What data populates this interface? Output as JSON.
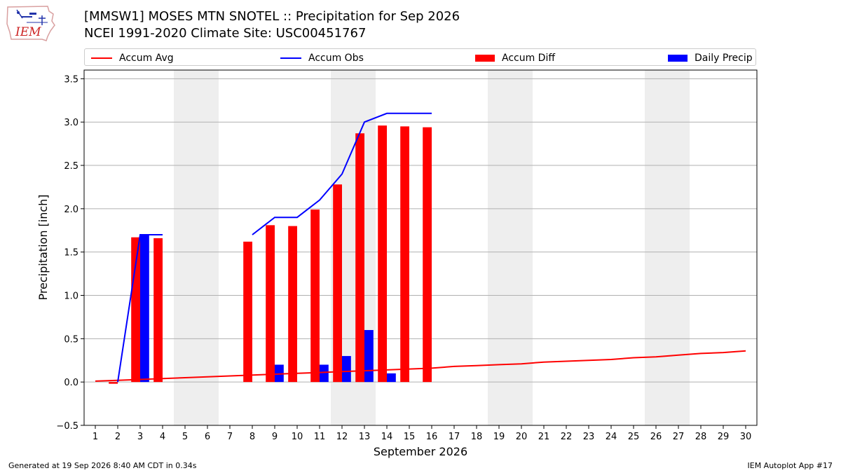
{
  "header": {
    "title_line1": "[MMSW1] MOSES MTN SNOTEL :: Precipitation for Sep 2026",
    "title_line2": "NCEI 1991-2020 Climate Site: USC00451767"
  },
  "logo": {
    "text": "IEM",
    "icon": "iem-iowa-logo-icon"
  },
  "legend": {
    "placement": "top, above plot",
    "items": [
      {
        "label": "Accum Avg",
        "kind": "line",
        "color": "#ff0000"
      },
      {
        "label": "Accum Obs",
        "kind": "line",
        "color": "#0000ff"
      },
      {
        "label": "Accum Diff",
        "kind": "bar",
        "color": "#ff0000"
      },
      {
        "label": "Daily Precip",
        "kind": "bar",
        "color": "#0000ff"
      }
    ]
  },
  "footer": {
    "left": "Generated at 19 Sep 2026 8:40 AM CDT in 0.34s",
    "right": "IEM Autoplot App #17"
  },
  "chart_data": {
    "type": "bar",
    "xlabel": "September 2026",
    "ylabel": "Precipitation [inch]",
    "xlim": [
      0.5,
      30.5
    ],
    "ylim": [
      -0.5,
      3.6
    ],
    "xticks": [
      1,
      2,
      3,
      4,
      5,
      6,
      7,
      8,
      9,
      10,
      11,
      12,
      13,
      14,
      15,
      16,
      17,
      18,
      19,
      20,
      21,
      22,
      23,
      24,
      25,
      26,
      27,
      28,
      29,
      30
    ],
    "yticks": [
      -0.5,
      0.0,
      0.5,
      1.0,
      1.5,
      2.0,
      2.5,
      3.0,
      3.5
    ],
    "ytick_labels": [
      "−0.5",
      "0.0",
      "0.5",
      "1.0",
      "1.5",
      "2.0",
      "2.5",
      "3.0",
      "3.5"
    ],
    "grid": "horizontal",
    "weekend_shading": [
      [
        4.5,
        6.5
      ],
      [
        11.5,
        13.5
      ],
      [
        18.5,
        20.5
      ],
      [
        25.5,
        27.5
      ]
    ],
    "weekend_color": "#eeeeee",
    "series": [
      {
        "name": "Accum Avg",
        "kind": "line",
        "color": "#ff0000",
        "x": [
          1,
          2,
          3,
          4,
          5,
          6,
          7,
          8,
          9,
          10,
          11,
          12,
          13,
          14,
          15,
          16,
          17,
          18,
          19,
          20,
          21,
          22,
          23,
          24,
          25,
          26,
          27,
          28,
          29,
          30
        ],
        "values": [
          0.01,
          0.02,
          0.03,
          0.04,
          0.05,
          0.06,
          0.07,
          0.08,
          0.09,
          0.1,
          0.11,
          0.12,
          0.13,
          0.14,
          0.15,
          0.16,
          0.18,
          0.19,
          0.2,
          0.21,
          0.23,
          0.24,
          0.25,
          0.26,
          0.28,
          0.29,
          0.31,
          0.33,
          0.34,
          0.36
        ]
      },
      {
        "name": "Accum Obs",
        "kind": "line",
        "color": "#0000ff",
        "segments": [
          {
            "x": [
              2,
              3,
              4
            ],
            "values": [
              0.0,
              1.7,
              1.7
            ]
          },
          {
            "x": [
              8,
              9,
              10,
              11,
              12,
              13,
              14,
              15,
              16
            ],
            "values": [
              1.7,
              1.9,
              1.9,
              2.1,
              2.4,
              3.0,
              3.1,
              3.1,
              3.1
            ]
          }
        ]
      },
      {
        "name": "Accum Diff",
        "kind": "bar",
        "color": "#ff0000",
        "x": [
          2,
          3,
          4,
          8,
          9,
          10,
          11,
          12,
          13,
          14,
          15,
          16
        ],
        "values": [
          -0.02,
          1.67,
          1.66,
          1.62,
          1.81,
          1.8,
          1.99,
          2.28,
          2.87,
          2.96,
          2.95,
          2.94
        ]
      },
      {
        "name": "Daily Precip",
        "kind": "bar",
        "color": "#0000ff",
        "x": [
          3,
          9,
          11,
          12,
          13,
          14
        ],
        "values": [
          1.7,
          0.2,
          0.2,
          0.3,
          0.6,
          0.1
        ]
      }
    ]
  }
}
